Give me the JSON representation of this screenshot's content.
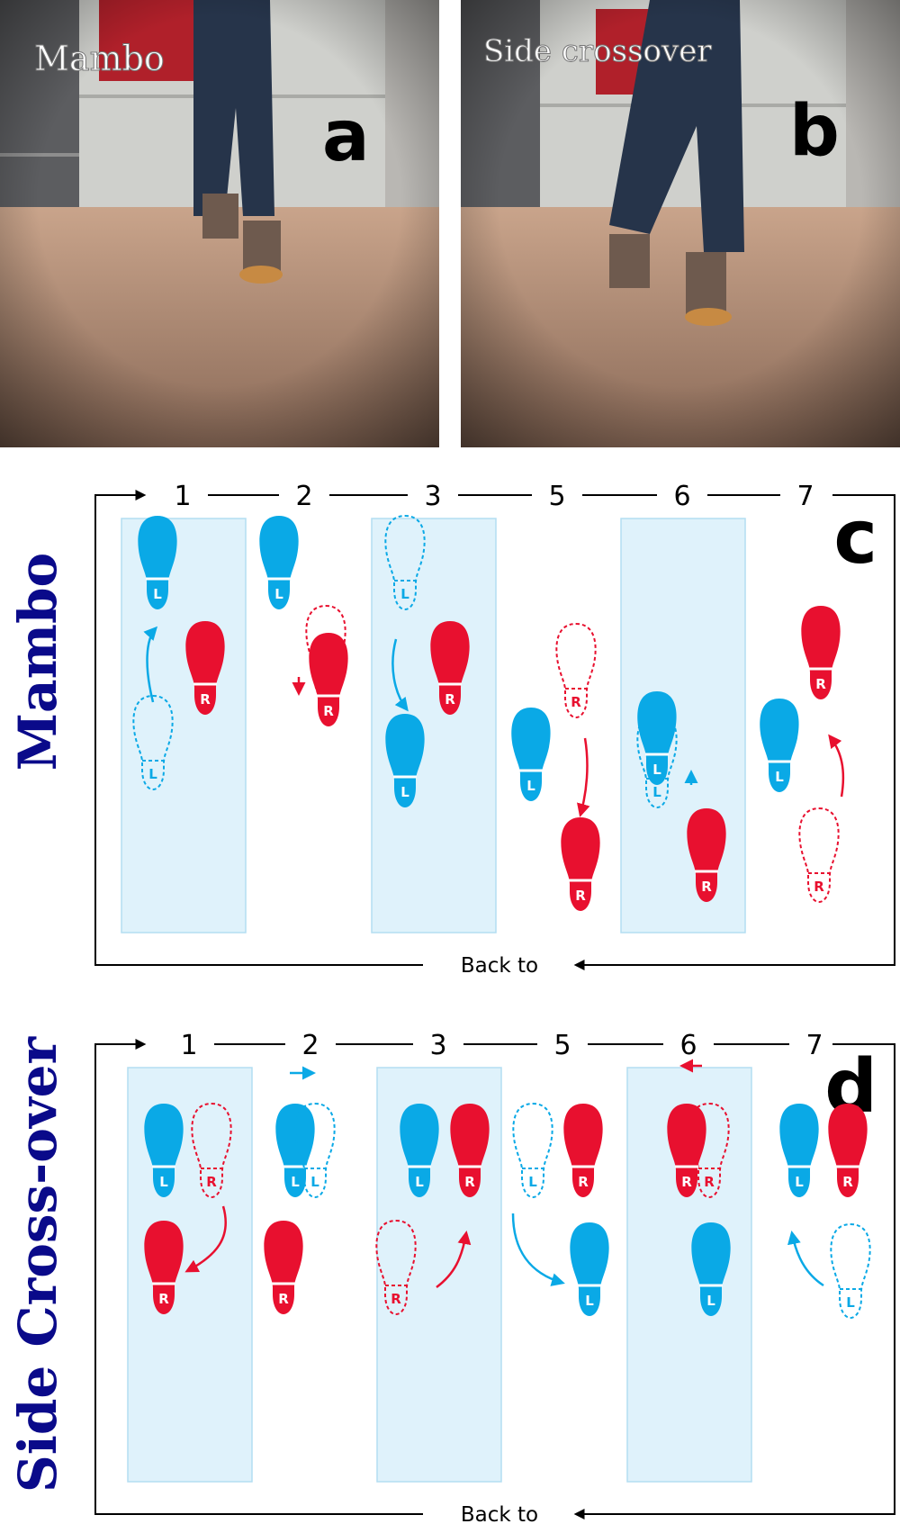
{
  "photos": [
    {
      "letter": "a",
      "caption": "Mambo"
    },
    {
      "letter": "b",
      "caption": "Side crossover"
    }
  ],
  "panels": [
    {
      "letter": "c",
      "side_title": "Mambo",
      "step_labels": [
        "1",
        "2",
        "3",
        "5",
        "6",
        "7"
      ],
      "return_label": "Back to",
      "foot_labels": {
        "left": "L",
        "right": "R"
      }
    },
    {
      "letter": "d",
      "side_title": "Side Cross-over",
      "step_labels": [
        "1",
        "2",
        "3",
        "5",
        "6",
        "7"
      ],
      "return_label": "Back to",
      "foot_labels": {
        "left": "L",
        "right": "R"
      }
    }
  ],
  "colors": {
    "left_foot": "#0aa9e6",
    "right_foot": "#e8102f",
    "right_foot_dark": "#d4153e",
    "highlight_column": "#dff2fb",
    "highlight_border": "#b3def2",
    "title": "#0a0a8a"
  }
}
